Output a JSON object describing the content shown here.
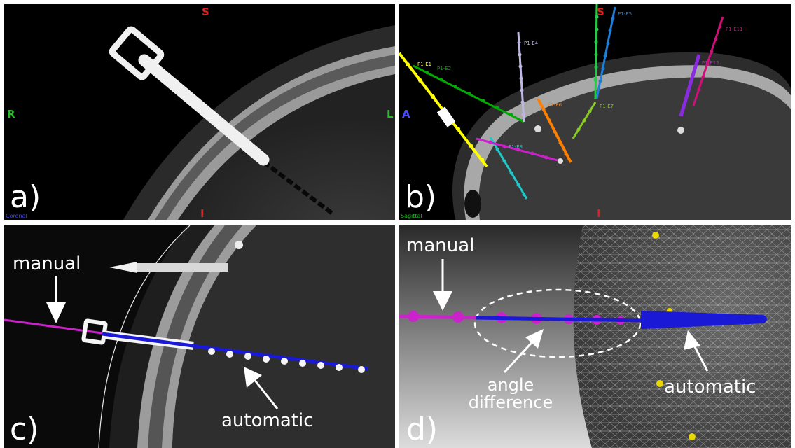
{
  "panels": {
    "a": {
      "label": "a)",
      "orientation": {
        "top": "S",
        "left": "R",
        "right": "L",
        "bottom": "I"
      },
      "view_name": "Coronal"
    },
    "b": {
      "label": "b)",
      "orientation": {
        "top": "S",
        "left": "A",
        "bottom": "I"
      },
      "view_name": "Sagittal",
      "electrodes": [
        {
          "name": "P1-E1",
          "color": "#ffff00"
        },
        {
          "name": "P1-E2",
          "color": "#00aa00"
        },
        {
          "name": "P1-E4",
          "color": "#c0b8e0"
        },
        {
          "name": "P1-E5",
          "color": "#1e7fd8"
        },
        {
          "name": "P1-E6",
          "color": "#ff7f00"
        },
        {
          "name": "P1-E7",
          "color": "#88cc22"
        },
        {
          "name": "P1-E8",
          "color": "#1ec8c8"
        },
        {
          "name": "P1-E11",
          "color": "#d0107a"
        },
        {
          "name": "P1-E12",
          "color": "#cc20cc"
        }
      ]
    },
    "c": {
      "label": "c)",
      "annotations": {
        "manual": "manual",
        "automatic": "automatic"
      }
    },
    "d": {
      "label": "d)",
      "annotations": {
        "manual": "manual",
        "angle_line1": "angle",
        "angle_line2": "difference",
        "automatic": "automatic"
      }
    }
  },
  "colors": {
    "manual": "#cc22cc",
    "automatic": "#1a1ad6",
    "annotation_text": "#ffffff",
    "orientation_S": "#e02020",
    "orientation_RL": "#20c020",
    "orientation_A": "#4a4aff"
  }
}
